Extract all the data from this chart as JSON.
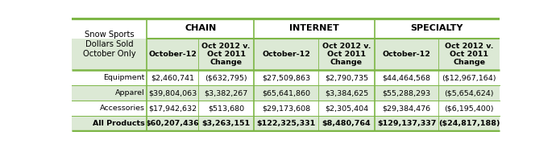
{
  "title_left": "Snow Sports\nDollars Sold\nOctober Only",
  "col_groups": [
    "CHAIN",
    "INTERNET",
    "SPECIALTY"
  ],
  "col_headers": [
    "October-12",
    "Oct 2012 v.\nOct 2011\nChange",
    "October-12",
    "Oct 2012 v.\nOct 2011\nChange",
    "October-12",
    "Oct 2012 v.\nOct 2011\nChange"
  ],
  "row_labels": [
    "Equipment",
    "Apparel",
    "Accessories",
    "All Products"
  ],
  "row_bold": [
    false,
    false,
    false,
    true
  ],
  "data": [
    [
      "$2,460,741",
      "($632,795)",
      "$27,509,863",
      "$2,790,735",
      "$44,464,568",
      "($12,967,164)"
    ],
    [
      "$39,804,063",
      "$3,382,267",
      "$65,641,860",
      "$3,384,625",
      "$55,288,293",
      "($5,654,624)"
    ],
    [
      "$17,942,632",
      "$513,680",
      "$29,173,608",
      "$2,305,404",
      "$29,384,476",
      "($6,195,400)"
    ],
    [
      "$60,207,436",
      "$3,263,151",
      "$122,325,331",
      "$8,480,764",
      "$129,137,337",
      "($24,817,188)"
    ]
  ],
  "row_colors": [
    "#ffffff",
    "#dce9d5",
    "#ffffff",
    "#dce9d5"
  ],
  "header_bg": "#dce9d5",
  "white_bg": "#ffffff",
  "border_color": "#7db646",
  "font_size": 6.8,
  "header_font_size": 6.8,
  "group_font_size": 8.0,
  "label_font_size": 7.2,
  "col_rel": [
    0.158,
    0.108,
    0.118,
    0.135,
    0.118,
    0.135,
    0.128
  ],
  "row_rel": [
    0.18,
    0.28,
    0.135,
    0.135,
    0.135,
    0.135
  ]
}
